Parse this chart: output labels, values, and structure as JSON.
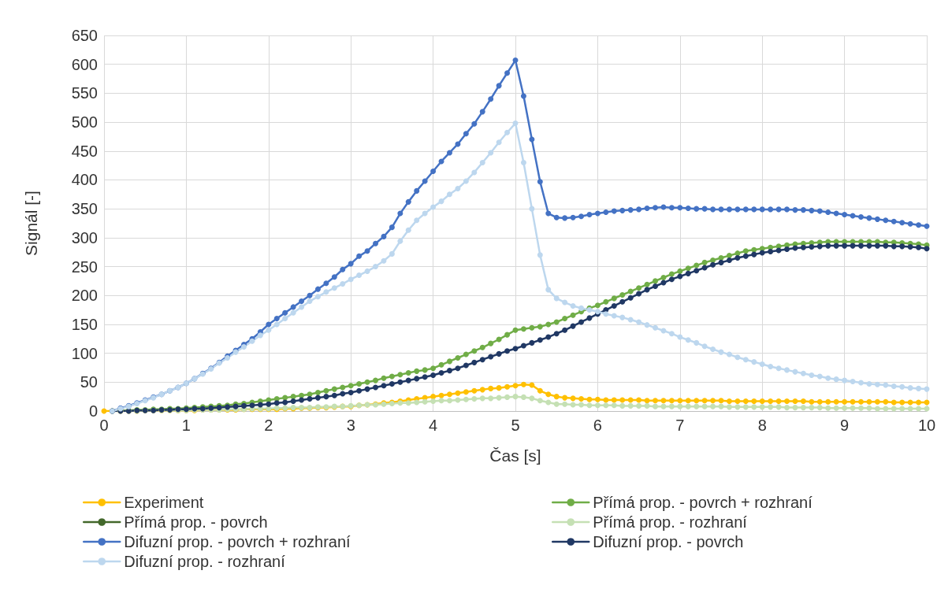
{
  "chart_data": {
    "type": "line",
    "xlabel": "Čas [s]",
    "ylabel": "Signál [-]",
    "x": [
      0,
      0.1,
      0.2,
      0.3,
      0.4,
      0.5,
      0.6,
      0.7,
      0.8,
      0.9,
      1,
      1.1,
      1.2,
      1.3,
      1.4,
      1.5,
      1.6,
      1.7,
      1.8,
      1.9,
      2,
      2.1,
      2.2,
      2.3,
      2.4,
      2.5,
      2.6,
      2.7,
      2.8,
      2.9,
      3,
      3.1,
      3.2,
      3.3,
      3.4,
      3.5,
      3.6,
      3.7,
      3.8,
      3.9,
      4,
      4.1,
      4.2,
      4.3,
      4.4,
      4.5,
      4.6,
      4.7,
      4.8,
      4.9,
      5,
      5.1,
      5.2,
      5.3,
      5.4,
      5.5,
      5.6,
      5.7,
      5.8,
      5.9,
      6,
      6.1,
      6.2,
      6.3,
      6.4,
      6.5,
      6.6,
      6.7,
      6.8,
      6.9,
      7,
      7.1,
      7.2,
      7.3,
      7.4,
      7.5,
      7.6,
      7.7,
      7.8,
      7.9,
      8,
      8.1,
      8.2,
      8.3,
      8.4,
      8.5,
      8.6,
      8.7,
      8.8,
      8.9,
      9,
      9.1,
      9.2,
      9.3,
      9.4,
      9.5,
      9.6,
      9.7,
      9.8,
      9.9,
      10
    ],
    "series": [
      {
        "name": "Experiment",
        "color": "#ffc000",
        "values": [
          0,
          0,
          0,
          0,
          0,
          1,
          1,
          1,
          1,
          1,
          1,
          1,
          2,
          2,
          2,
          2,
          2,
          3,
          3,
          3,
          3,
          3,
          4,
          4,
          5,
          5,
          6,
          6,
          7,
          8,
          8,
          10,
          11,
          12,
          14,
          15,
          17,
          19,
          21,
          23,
          25,
          27,
          29,
          31,
          33,
          35,
          37,
          39,
          40,
          42,
          44,
          46,
          45,
          35,
          29,
          25,
          23,
          22,
          21,
          20,
          20,
          19,
          19,
          19,
          19,
          19,
          18,
          18,
          18,
          18,
          18,
          18,
          18,
          18,
          18,
          18,
          17,
          17,
          17,
          17,
          17,
          17,
          17,
          17,
          17,
          17,
          16,
          16,
          16,
          16,
          16,
          16,
          16,
          16,
          16,
          16,
          15,
          15,
          15,
          15,
          15
        ]
      },
      {
        "name": "Přímá prop. - povrch + rozhraní",
        "color": "#70ad47",
        "values": [
          null,
          0,
          1,
          1,
          2,
          2,
          3,
          3,
          4,
          4,
          5,
          6,
          7,
          8,
          9,
          10,
          12,
          13,
          15,
          17,
          19,
          21,
          23,
          25,
          27,
          29,
          32,
          35,
          38,
          41,
          44,
          47,
          50,
          53,
          57,
          60,
          63,
          66,
          69,
          71,
          74,
          80,
          86,
          92,
          98,
          104,
          110,
          117,
          124,
          132,
          140,
          142,
          144,
          146,
          150,
          154,
          160,
          166,
          172,
          178,
          183,
          189,
          195,
          201,
          207,
          213,
          219,
          225,
          231,
          237,
          242,
          247,
          252,
          257,
          261,
          265,
          269,
          273,
          277,
          279,
          281,
          283,
          285,
          287,
          289,
          290,
          291,
          292,
          293,
          293,
          293,
          293,
          293,
          293,
          293,
          292,
          292,
          291,
          290,
          289,
          287
        ]
      },
      {
        "name": "Přímá prop. - povrch",
        "color": "#43682b",
        "values": [
          null,
          null,
          null,
          null,
          null,
          null,
          null,
          null,
          null,
          null,
          null,
          null,
          null,
          null,
          null,
          null,
          null,
          null,
          null,
          null,
          null,
          null,
          null,
          null,
          null,
          null,
          null,
          null,
          null,
          null,
          null,
          null,
          null,
          null,
          null,
          null,
          null,
          null,
          null,
          null,
          null,
          null,
          null,
          null,
          null,
          null,
          null,
          null,
          null,
          null,
          null,
          null,
          null,
          null,
          null,
          null,
          null,
          null,
          null,
          null,
          null,
          null,
          null,
          null,
          null,
          null,
          null,
          null,
          null,
          null,
          null,
          null,
          null,
          null,
          null,
          null,
          null,
          null,
          null,
          null,
          null,
          null,
          null,
          null,
          null,
          null,
          null,
          null,
          null,
          null,
          null,
          null,
          null,
          null,
          null,
          null,
          null,
          null,
          null,
          null,
          null
        ]
      },
      {
        "name": "Přímá prop. - rozhraní",
        "color": "#c5e0b4",
        "values": [
          null,
          0,
          0,
          0,
          0,
          1,
          1,
          1,
          1,
          1,
          1,
          2,
          2,
          2,
          2,
          3,
          3,
          3,
          4,
          4,
          4,
          5,
          5,
          6,
          6,
          6,
          7,
          7,
          8,
          8,
          9,
          10,
          11,
          11,
          12,
          13,
          14,
          14,
          15,
          16,
          17,
          18,
          18,
          19,
          20,
          21,
          22,
          22,
          23,
          24,
          25,
          24,
          22,
          18,
          15,
          12,
          12,
          11,
          11,
          10,
          10,
          10,
          10,
          9,
          9,
          9,
          9,
          8,
          8,
          8,
          8,
          8,
          8,
          8,
          8,
          8,
          7,
          7,
          7,
          7,
          7,
          7,
          7,
          6,
          6,
          6,
          6,
          6,
          5,
          5,
          5,
          5,
          5,
          5,
          4,
          4,
          4,
          4,
          4,
          4,
          4
        ]
      },
      {
        "name": "Difuzní prop. - povrch + rozhraní",
        "color": "#4472c4",
        "values": [
          null,
          0,
          5,
          9,
          14,
          19,
          24,
          29,
          35,
          41,
          48,
          56,
          65,
          74,
          84,
          95,
          105,
          115,
          125,
          137,
          150,
          160,
          170,
          180,
          190,
          200,
          211,
          221,
          232,
          245,
          255,
          268,
          277,
          290,
          302,
          318,
          342,
          362,
          381,
          398,
          415,
          432,
          447,
          462,
          480,
          497,
          518,
          540,
          563,
          585,
          607,
          545,
          470,
          397,
          342,
          335,
          334,
          335,
          337,
          340,
          342,
          344,
          346,
          347,
          348,
          349,
          351,
          352,
          353,
          352,
          352,
          351,
          350,
          350,
          349,
          349,
          349,
          349,
          349,
          349,
          349,
          349,
          349,
          349,
          348,
          348,
          347,
          346,
          344,
          342,
          340,
          338,
          336,
          334,
          332,
          330,
          328,
          326,
          324,
          322,
          320
        ]
      },
      {
        "name": "Difuzní prop. - povrch",
        "color": "#203864",
        "values": [
          null,
          0,
          0,
          0,
          1,
          1,
          1,
          2,
          2,
          3,
          3,
          4,
          4,
          5,
          6,
          7,
          8,
          9,
          10,
          11,
          12,
          14,
          15,
          17,
          19,
          21,
          23,
          25,
          27,
          30,
          32,
          35,
          38,
          41,
          44,
          47,
          50,
          53,
          56,
          59,
          62,
          66,
          70,
          74,
          79,
          84,
          89,
          94,
          99,
          104,
          108,
          113,
          118,
          123,
          128,
          134,
          140,
          147,
          154,
          161,
          168,
          175,
          182,
          189,
          196,
          203,
          210,
          216,
          222,
          228,
          233,
          238,
          243,
          248,
          253,
          257,
          261,
          265,
          268,
          271,
          274,
          276,
          278,
          280,
          282,
          283,
          284,
          285,
          286,
          286,
          286,
          286,
          286,
          286,
          286,
          286,
          285,
          285,
          284,
          283,
          281
        ]
      },
      {
        "name": "Difuzní prop. - rozhraní",
        "color": "#bdd7ee",
        "values": [
          null,
          0,
          4,
          8,
          13,
          18,
          23,
          29,
          35,
          41,
          48,
          56,
          64,
          73,
          83,
          92,
          102,
          111,
          121,
          131,
          140,
          150,
          160,
          170,
          180,
          190,
          198,
          206,
          213,
          220,
          228,
          235,
          242,
          250,
          260,
          272,
          294,
          313,
          330,
          342,
          353,
          363,
          375,
          385,
          398,
          413,
          430,
          447,
          465,
          482,
          498,
          430,
          350,
          270,
          210,
          195,
          188,
          182,
          178,
          175,
          172,
          168,
          165,
          162,
          158,
          154,
          149,
          144,
          139,
          134,
          128,
          123,
          118,
          112,
          107,
          102,
          98,
          93,
          89,
          85,
          81,
          77,
          74,
          71,
          68,
          65,
          62,
          60,
          57,
          55,
          53,
          51,
          49,
          47,
          46,
          45,
          43,
          42,
          40,
          39,
          38
        ]
      }
    ],
    "xlim": [
      0,
      10
    ],
    "xticks": [
      0,
      1,
      2,
      3,
      4,
      5,
      6,
      7,
      8,
      9,
      10
    ],
    "ylim": [
      0,
      650
    ],
    "yticks": [
      0,
      50,
      100,
      150,
      200,
      250,
      300,
      350,
      400,
      450,
      500,
      550,
      600,
      650
    ],
    "grid": true,
    "legend": "bottom",
    "marker": "circle",
    "line_style": "solid"
  }
}
